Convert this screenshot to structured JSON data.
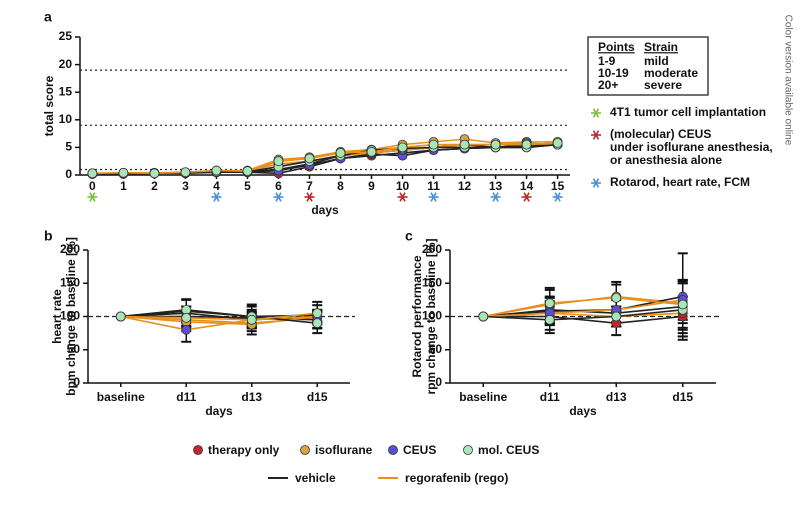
{
  "side_note": "Color version available online",
  "legend": {
    "groups": [
      {
        "name": "therapy only",
        "color": "#c0272d"
      },
      {
        "name": "isoflurane",
        "color": "#d9a441"
      },
      {
        "name": "CEUS",
        "color": "#5b4fd6"
      },
      {
        "name": "mol. CEUS",
        "color": "#a8e6b8"
      }
    ],
    "lines": [
      {
        "name": "vehicle",
        "color": "#222222"
      },
      {
        "name": "regorafenib (rego)",
        "color": "#e8901e"
      }
    ]
  },
  "chart_data": [
    {
      "type": "line",
      "panel": "a",
      "ylabel": [
        "total score"
      ],
      "xlabel": "days",
      "x": [
        0,
        1,
        2,
        3,
        4,
        5,
        6,
        7,
        8,
        9,
        10,
        11,
        12,
        13,
        14,
        15
      ],
      "xlim": [
        -0.4,
        15.4
      ],
      "xticks": [
        0,
        1,
        2,
        3,
        4,
        5,
        6,
        7,
        8,
        9,
        10,
        11,
        12,
        13,
        14,
        15
      ],
      "ylim": [
        0,
        25
      ],
      "yticks": [
        0,
        5,
        10,
        15,
        20,
        25
      ],
      "thresholds": [
        1,
        9,
        19
      ],
      "severity_table": {
        "header": [
          "Points",
          "Strain"
        ],
        "rows": [
          [
            "1-9",
            "mild"
          ],
          [
            "10-19",
            "moderate"
          ],
          [
            "20+",
            "severe"
          ]
        ]
      },
      "annotations": [
        {
          "color": "#7bc043",
          "text": [
            "4T1 tumor cell implantation"
          ]
        },
        {
          "color": "#c0272d",
          "text": [
            "(molecular) CEUS",
            "under isoflurane anesthesia,",
            "or anesthesia alone"
          ]
        },
        {
          "color": "#4a90d9",
          "text": [
            "Rotarod, heart rate, FCM"
          ]
        }
      ],
      "stars": [
        {
          "x": 0,
          "color": "#7bc043"
        },
        {
          "x": 4,
          "color": "#4a90d9"
        },
        {
          "x": 6,
          "color": "#4a90d9"
        },
        {
          "x": 7,
          "color": "#c0272d"
        },
        {
          "x": 10,
          "color": "#c0272d"
        },
        {
          "x": 11,
          "color": "#4a90d9"
        },
        {
          "x": 13,
          "color": "#4a90d9"
        },
        {
          "x": 14,
          "color": "#c0272d"
        },
        {
          "x": 15,
          "color": "#4a90d9"
        }
      ],
      "series": [
        {
          "marker_color": "#c0272d",
          "line_color": "#222222",
          "values": [
            0.2,
            0.3,
            0.3,
            0.4,
            0.5,
            0.5,
            0.3,
            1.5,
            3,
            3.5,
            4,
            4.5,
            4.8,
            5,
            5,
            5.5
          ]
        },
        {
          "marker_color": "#c0272d",
          "line_color": "#e8901e",
          "values": [
            0.2,
            0.3,
            0.3,
            0.4,
            0.6,
            0.7,
            2.5,
            3,
            4,
            4.5,
            5,
            5.5,
            5.5,
            5.5,
            5.5,
            5.5
          ]
        },
        {
          "marker_color": "#d9a441",
          "line_color": "#222222",
          "values": [
            0.3,
            0.3,
            0.3,
            0.5,
            0.7,
            0.6,
            1,
            2,
            3.5,
            4,
            4.5,
            5,
            5.5,
            5,
            5.5,
            5.8
          ]
        },
        {
          "marker_color": "#d9a441",
          "line_color": "#e8901e",
          "values": [
            0.3,
            0.4,
            0.4,
            0.5,
            0.8,
            0.8,
            2.8,
            3.2,
            4.2,
            4.6,
            5.5,
            6,
            6.5,
            5.8,
            6,
            6
          ]
        },
        {
          "marker_color": "#5b4fd6",
          "line_color": "#222222",
          "values": [
            0.2,
            0.2,
            0.3,
            0.3,
            0.5,
            0.5,
            0.8,
            1.8,
            3,
            3.8,
            3.5,
            4.5,
            4.8,
            5,
            5.2,
            5.5
          ]
        },
        {
          "marker_color": "#5b4fd6",
          "line_color": "#e8901e",
          "values": [
            0.3,
            0.3,
            0.3,
            0.4,
            0.6,
            0.7,
            2,
            2.5,
            3.5,
            4,
            4.5,
            5,
            5.5,
            5.5,
            5.8,
            5.5
          ]
        },
        {
          "marker_color": "#a8e6b8",
          "line_color": "#222222",
          "values": [
            0.2,
            0.3,
            0.3,
            0.4,
            0.6,
            0.6,
            1.5,
            2.5,
            3.5,
            4.5,
            4.8,
            5,
            5,
            5,
            5,
            5.5
          ]
        },
        {
          "marker_color": "#a8e6b8",
          "line_color": "#e8901e",
          "values": [
            0.3,
            0.4,
            0.3,
            0.5,
            0.8,
            0.7,
            2.5,
            3,
            4,
            4.2,
            5,
            5.5,
            5.5,
            5.5,
            5.5,
            5.8
          ]
        }
      ]
    },
    {
      "type": "line",
      "panel": "b",
      "ylabel": [
        "heart rate",
        "bpm change to baseline [%]"
      ],
      "xlabel": "days",
      "categories": [
        "baseline",
        "d11",
        "d13",
        "d15"
      ],
      "ylim": [
        0,
        200
      ],
      "yticks": [
        0,
        50,
        100,
        150,
        200
      ],
      "reference": 100,
      "series": [
        {
          "marker_color": "#c0272d",
          "line_color": "#222222",
          "values": [
            100,
            105,
            95,
            100
          ],
          "errors": [
            0,
            10,
            10,
            8
          ]
        },
        {
          "marker_color": "#c0272d",
          "line_color": "#e8901e",
          "values": [
            100,
            95,
            90,
            98
          ],
          "errors": [
            0,
            12,
            12,
            10
          ]
        },
        {
          "marker_color": "#d9a441",
          "line_color": "#222222",
          "values": [
            100,
            100,
            98,
            95
          ],
          "errors": [
            0,
            15,
            12,
            12
          ]
        },
        {
          "marker_color": "#d9a441",
          "line_color": "#e8901e",
          "values": [
            100,
            92,
            88,
            100
          ],
          "errors": [
            0,
            14,
            15,
            10
          ]
        },
        {
          "marker_color": "#5b4fd6",
          "line_color": "#222222",
          "values": [
            100,
            108,
            100,
            102
          ],
          "errors": [
            0,
            18,
            15,
            20
          ]
        },
        {
          "marker_color": "#5b4fd6",
          "line_color": "#e8901e",
          "values": [
            100,
            80,
            95,
            100
          ],
          "errors": [
            0,
            18,
            12,
            10
          ]
        },
        {
          "marker_color": "#a8e6b8",
          "line_color": "#222222",
          "values": [
            100,
            110,
            100,
            90
          ],
          "errors": [
            0,
            15,
            18,
            15
          ]
        },
        {
          "marker_color": "#a8e6b8",
          "line_color": "#e8901e",
          "values": [
            100,
            98,
            95,
            105
          ],
          "errors": [
            0,
            12,
            12,
            12
          ]
        }
      ]
    },
    {
      "type": "line",
      "panel": "c",
      "ylabel": [
        "Rotarod performance",
        "rpm change to baseline [%]"
      ],
      "xlabel": "days",
      "categories": [
        "baseline",
        "d11",
        "d13",
        "d15"
      ],
      "ylim": [
        0,
        200
      ],
      "yticks": [
        0,
        50,
        100,
        150,
        200
      ],
      "reference": 100,
      "series": [
        {
          "marker_color": "#c0272d",
          "line_color": "#222222",
          "values": [
            100,
            100,
            90,
            100
          ],
          "errors": [
            0,
            20,
            18,
            30
          ]
        },
        {
          "marker_color": "#c0272d",
          "line_color": "#e8901e",
          "values": [
            100,
            105,
            100,
            105
          ],
          "errors": [
            0,
            18,
            15,
            25
          ]
        },
        {
          "marker_color": "#d9a441",
          "line_color": "#222222",
          "values": [
            100,
            110,
            105,
            115
          ],
          "errors": [
            0,
            20,
            20,
            40
          ]
        },
        {
          "marker_color": "#d9a441",
          "line_color": "#e8901e",
          "values": [
            100,
            118,
            130,
            120
          ],
          "errors": [
            0,
            25,
            22,
            30
          ]
        },
        {
          "marker_color": "#5b4fd6",
          "line_color": "#222222",
          "values": [
            100,
            108,
            110,
            130
          ],
          "errors": [
            0,
            20,
            20,
            65
          ]
        },
        {
          "marker_color": "#5b4fd6",
          "line_color": "#e8901e",
          "values": [
            100,
            105,
            110,
            125
          ],
          "errors": [
            0,
            15,
            18,
            30
          ]
        },
        {
          "marker_color": "#a8e6b8",
          "line_color": "#222222",
          "values": [
            100,
            95,
            100,
            110
          ],
          "errors": [
            0,
            20,
            15,
            40
          ]
        },
        {
          "marker_color": "#a8e6b8",
          "line_color": "#e8901e",
          "values": [
            100,
            120,
            128,
            118
          ],
          "errors": [
            0,
            20,
            20,
            35
          ]
        }
      ]
    }
  ]
}
